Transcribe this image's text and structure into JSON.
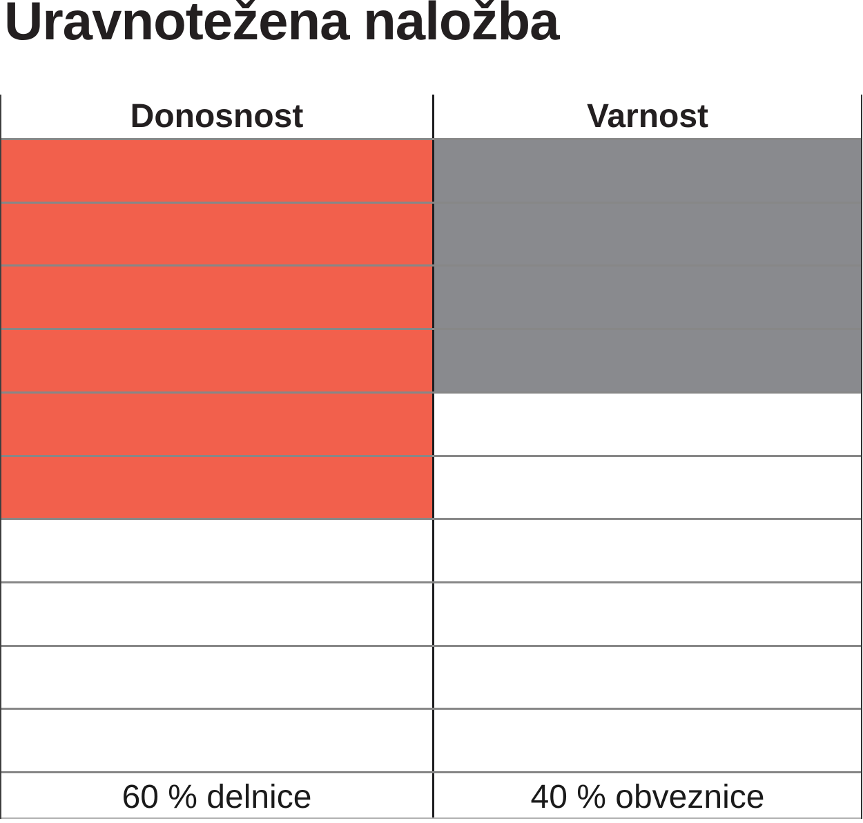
{
  "title": "Uravnotežena naložba",
  "table": {
    "total_rows": 10,
    "columns": [
      {
        "header": "Donosnost",
        "filled_cells": 6,
        "fill_color": "#F2604C",
        "footer": "60 % delnice"
      },
      {
        "header": "Varnost",
        "filled_cells": 4,
        "fill_color": "#898A8E",
        "footer": "40 % obveznice"
      }
    ]
  },
  "colors": {
    "accent_red": "#F2604C",
    "neutral_gray": "#898A8E",
    "grid_line": "#878787",
    "divider_line": "#1d1d1f",
    "text": "#231f20"
  },
  "chart_data": {
    "type": "bar",
    "title": "Uravnotežena naložba",
    "categories": [
      "Donosnost",
      "Varnost"
    ],
    "values": [
      60,
      40
    ],
    "unit": "%",
    "filled_cells": [
      6,
      4
    ],
    "total_cells_per_column": 10,
    "value_labels": [
      "60 % delnice",
      "40 % obveznice"
    ],
    "colors": [
      "#F2604C",
      "#898A8E"
    ],
    "orientation": "vertical-cell-pictograph",
    "legend_position": "bottom",
    "grid": true
  }
}
